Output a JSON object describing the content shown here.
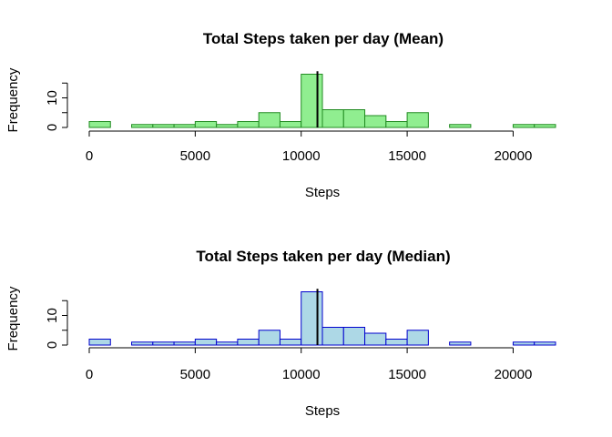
{
  "chart_data": [
    {
      "type": "bar",
      "title": "Total Steps taken per day (Mean)",
      "xlabel": "Steps",
      "ylabel": "Frequency",
      "bin_width": 1000,
      "bin_start": 0,
      "x_ticks": [
        0,
        5000,
        10000,
        15000,
        20000
      ],
      "y_ticks": [
        0,
        10
      ],
      "xlim": [
        0,
        22000
      ],
      "ylim": [
        0,
        18
      ],
      "values": [
        2,
        0,
        1,
        1,
        1,
        2,
        1,
        2,
        5,
        2,
        18,
        6,
        6,
        4,
        2,
        5,
        0,
        1,
        0,
        0,
        1,
        1
      ],
      "reference_line": 10766,
      "fill_color": "#90ee90",
      "edge_color": "#228b22"
    },
    {
      "type": "bar",
      "title": "Total Steps taken per day (Median)",
      "xlabel": "Steps",
      "ylabel": "Frequency",
      "bin_width": 1000,
      "bin_start": 0,
      "x_ticks": [
        0,
        5000,
        10000,
        15000,
        20000
      ],
      "y_ticks": [
        0,
        10
      ],
      "xlim": [
        0,
        22000
      ],
      "ylim": [
        0,
        18
      ],
      "values": [
        2,
        0,
        1,
        1,
        1,
        2,
        1,
        2,
        5,
        2,
        18,
        6,
        6,
        4,
        2,
        5,
        0,
        1,
        0,
        0,
        1,
        1
      ],
      "reference_line": 10766,
      "fill_color": "#add8e6",
      "edge_color": "#0000cd"
    }
  ]
}
